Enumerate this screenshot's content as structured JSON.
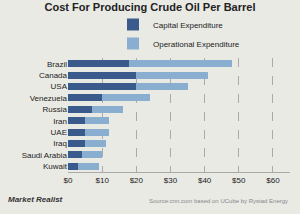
{
  "chart_data": {
    "type": "bar",
    "orientation": "horizontal",
    "stacked": true,
    "title": "Cost For Producing Crude Oil Per Barrel",
    "categories": [
      "Brazil",
      "Canada",
      "USA",
      "Venezuela",
      "Russia",
      "Iran",
      "UAE",
      "Iraq",
      "Saudi Arabia",
      "Kuwait"
    ],
    "series": [
      {
        "name": "Capital Expenditure",
        "color": "#3a5a8c",
        "values": [
          18,
          20,
          20,
          10,
          7,
          5,
          5,
          5,
          4,
          3
        ]
      },
      {
        "name": "Operational Expenditure",
        "color": "#8aaecf",
        "values": [
          30,
          21,
          15,
          14,
          9,
          7,
          7,
          6,
          6,
          6
        ]
      }
    ],
    "xlim": [
      0,
      65
    ],
    "xticks": [
      {
        "value": 0,
        "label": "$0"
      },
      {
        "value": 10,
        "label": "$10"
      },
      {
        "value": 20,
        "label": "$20"
      },
      {
        "value": 30,
        "label": "$30"
      },
      {
        "value": 40,
        "label": "$40"
      },
      {
        "value": 50,
        "label": "$50"
      },
      {
        "value": 60,
        "label": "$60"
      }
    ],
    "grid": true,
    "legend": "top",
    "annotations": [
      "Market Realist",
      "Source:cnn.com based on UCube by Rystad Energy"
    ]
  }
}
